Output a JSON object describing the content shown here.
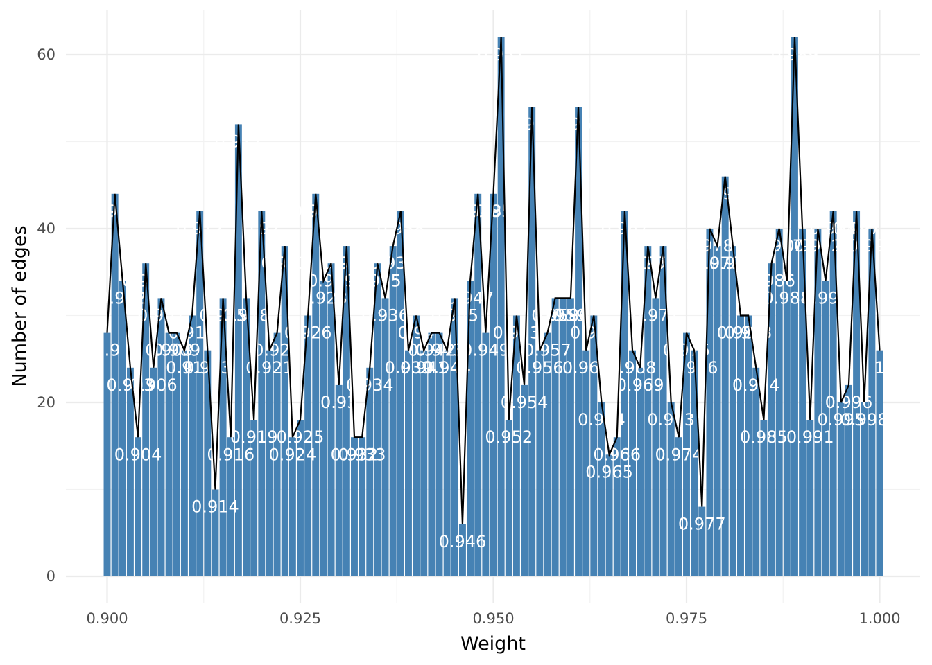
{
  "chart_data": {
    "type": "bar",
    "xlabel": "Weight",
    "ylabel": "Number of edges",
    "xlim": [
      0.9,
      1.0
    ],
    "ylim": [
      0,
      65
    ],
    "x_ticks": [
      "0.900",
      "0.925",
      "0.950",
      "0.975",
      "1.000"
    ],
    "x_tick_values": [
      0.9,
      0.925,
      0.95,
      0.975,
      1.0
    ],
    "y_ticks": [
      "0",
      "20",
      "40",
      "60"
    ],
    "y_tick_values": [
      0,
      20,
      40,
      60
    ],
    "grid": true,
    "bar_color": "#4682B4",
    "line_color": "#000000",
    "label_color": "#FFFFFF",
    "series": [
      {
        "x": [
          0.9,
          0.901,
          0.902,
          0.903,
          0.904,
          0.905,
          0.906,
          0.907,
          0.908,
          0.909,
          0.91,
          0.911,
          0.912,
          0.913,
          0.914,
          0.915,
          0.916,
          0.917,
          0.918,
          0.919,
          0.92,
          0.921,
          0.922,
          0.923,
          0.924,
          0.925,
          0.926,
          0.927,
          0.928,
          0.929,
          0.93,
          0.931,
          0.932,
          0.933,
          0.934,
          0.935,
          0.936,
          0.937,
          0.938,
          0.939,
          0.94,
          0.941,
          0.942,
          0.943,
          0.944,
          0.945,
          0.946,
          0.947,
          0.948,
          0.949,
          0.95,
          0.951,
          0.952,
          0.953,
          0.954,
          0.955,
          0.956,
          0.957,
          0.958,
          0.959,
          0.96,
          0.961,
          0.962,
          0.963,
          0.964,
          0.965,
          0.966,
          0.967,
          0.968,
          0.969,
          0.97,
          0.971,
          0.972,
          0.973,
          0.974,
          0.975,
          0.976,
          0.977,
          0.978,
          0.979,
          0.98,
          0.981,
          0.982,
          0.983,
          0.984,
          0.985,
          0.986,
          0.987,
          0.988,
          0.989,
          0.99,
          0.991,
          0.992,
          0.993,
          0.994,
          0.995,
          0.996,
          0.997,
          0.998,
          0.999,
          1.0
        ],
        "values": [
          28,
          44,
          34,
          24,
          16,
          36,
          24,
          32,
          28,
          28,
          26,
          30,
          42,
          26,
          10,
          32,
          16,
          52,
          32,
          18,
          42,
          26,
          28,
          38,
          16,
          18,
          30,
          44,
          34,
          36,
          22,
          38,
          16,
          16,
          24,
          36,
          32,
          38,
          42,
          26,
          30,
          26,
          28,
          28,
          26,
          32,
          6,
          34,
          44,
          28,
          44,
          62,
          18,
          30,
          22,
          54,
          26,
          28,
          32,
          32,
          32,
          54,
          26,
          30,
          20,
          14,
          16,
          42,
          26,
          24,
          38,
          32,
          38,
          20,
          16,
          28,
          26,
          8,
          40,
          38,
          46,
          38,
          30,
          30,
          24,
          18,
          36,
          40,
          34,
          62,
          40,
          18,
          40,
          34,
          42,
          20,
          22,
          42,
          20,
          40,
          26
        ],
        "labels": [
          "0.9",
          "0.901",
          "0.902",
          "0.903",
          "0.904",
          "0.905",
          "0.906",
          "0.907",
          "0.908",
          "0.909",
          "0.91",
          "0.911",
          "0.912",
          "0.913",
          "0.914",
          "0.915",
          "0.916",
          "0.917",
          "0.918",
          "0.919",
          "0.92",
          "0.921",
          "0.922",
          "0.923",
          "0.924",
          "0.925",
          "0.926",
          "0.927",
          "0.928",
          "0.929",
          "0.93",
          "0.931",
          "0.932",
          "0.933",
          "0.934",
          "0.935",
          "0.936",
          "0.937",
          "0.938",
          "0.939",
          "0.94",
          "0.941",
          "0.942",
          "0.943",
          "0.944",
          "0.945",
          "0.946",
          "0.947",
          "0.948",
          "0.949",
          "0.95",
          "0.951",
          "0.952",
          "0.953",
          "0.954",
          "0.955",
          "0.956",
          "0.957",
          "0.958",
          "0.959",
          "0.96",
          "0.961",
          "0.962",
          "0.963",
          "0.964",
          "0.965",
          "0.966",
          "0.967",
          "0.968",
          "0.969",
          "0.97",
          "0.971",
          "0.972",
          "0.973",
          "0.974",
          "0.975",
          "0.976",
          "0.977",
          "0.978",
          "0.979",
          "0.98",
          "0.981",
          "0.982",
          "0.983",
          "0.984",
          "0.985",
          "0.986",
          "0.987",
          "0.988",
          "0.989",
          "0.99",
          "0.991",
          "0.992",
          "0.993",
          "0.994",
          "0.995",
          "0.996",
          "0.997",
          "0.998",
          "0.999",
          "1"
        ]
      }
    ]
  }
}
